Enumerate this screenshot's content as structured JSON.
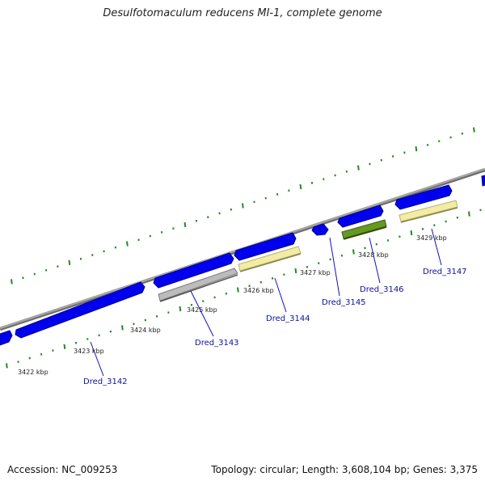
{
  "header": {
    "title": "Desulfotomaculum reducens MI-1, complete genome"
  },
  "footer": {
    "accession": "Accession: NC_009253",
    "topology": "Topology: circular; Length: 3,608,104 bp; Genes: 3,375"
  },
  "colors": {
    "backbone": "#909090",
    "cds": "#0000ee",
    "pseudogene": "#bcbcbc",
    "rrna_like": "#eeeea0",
    "trna_like": "#669922",
    "tick_marks": "#228b22",
    "gene_label": "#1010a0"
  },
  "ticks": [
    "3422 kbp",
    "3423 kbp",
    "3424 kbp",
    "3425 kbp",
    "3426 kbp",
    "3427 kbp",
    "3428 kbp",
    "3429 kbp"
  ],
  "genes": [
    "Dred_3142",
    "Dred_3143",
    "Dred_3144",
    "Dred_3145",
    "Dred_3146",
    "Dred_3147"
  ]
}
